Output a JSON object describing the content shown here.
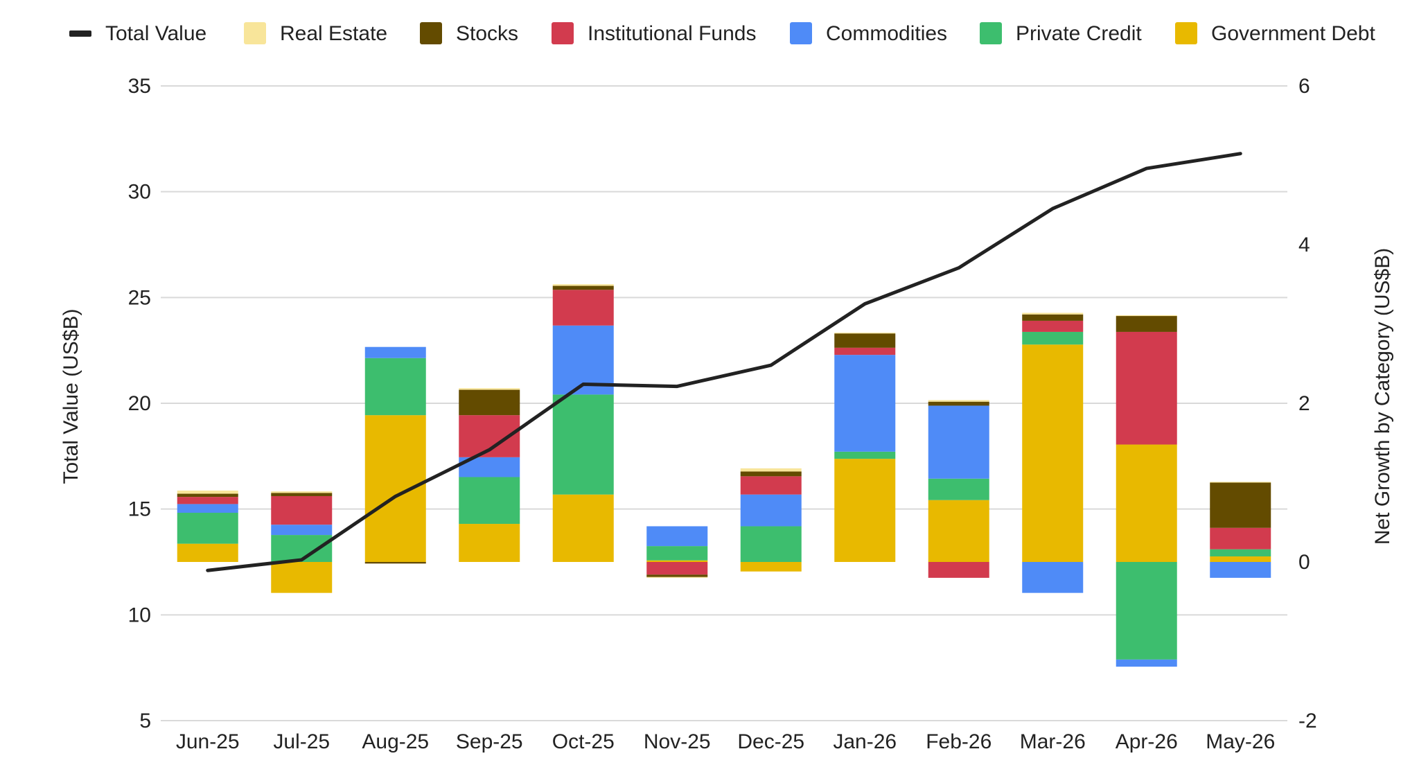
{
  "chart_data": {
    "type": "bar",
    "subtype": "stacked-bar-with-line",
    "categories": [
      "Jun-25",
      "Jul-25",
      "Aug-25",
      "Sep-25",
      "Oct-25",
      "Nov-25",
      "Dec-25",
      "Jan-26",
      "Feb-26",
      "Mar-26",
      "Apr-26",
      "May-26"
    ],
    "left_axis": {
      "label": "Total Value (US$B)",
      "ylim": [
        5,
        35
      ],
      "ticks": [
        5,
        10,
        15,
        20,
        25,
        30,
        35
      ]
    },
    "right_axis": {
      "label": "Net Growth by Category (US$B)",
      "ylim": [
        -2,
        6
      ],
      "ticks": [
        -2,
        0,
        2,
        4,
        6
      ]
    },
    "legend_position": "top",
    "grid": true,
    "line_series": {
      "name": "Total Value",
      "color": "#222222",
      "axis": "left",
      "values": [
        12.1,
        12.6,
        15.6,
        17.8,
        20.9,
        20.8,
        21.8,
        24.7,
        26.4,
        29.2,
        31.1,
        31.8
      ]
    },
    "bar_series": [
      {
        "name": "Government Debt",
        "color": "#E8B900",
        "axis": "right",
        "values": [
          0.23,
          -0.39,
          1.85,
          0.48,
          0.85,
          0.02,
          -0.12,
          1.3,
          0.78,
          2.74,
          1.48,
          0.07
        ]
      },
      {
        "name": "Private Credit",
        "color": "#3DBE6E",
        "axis": "right",
        "values": [
          0.39,
          0.34,
          0.72,
          0.59,
          1.26,
          0.18,
          0.45,
          0.09,
          0.27,
          0.16,
          -1.23,
          0.09
        ]
      },
      {
        "name": "Commodities",
        "color": "#4F8BF7",
        "axis": "right",
        "values": [
          0.11,
          0.13,
          0.14,
          0.25,
          0.87,
          0.25,
          0.4,
          1.22,
          0.92,
          -0.39,
          -0.09,
          -0.2
        ]
      },
      {
        "name": "Institutional Funds",
        "color": "#D23B4E",
        "axis": "right",
        "values": [
          0.09,
          0.36,
          0.0,
          0.53,
          0.45,
          -0.16,
          0.23,
          0.09,
          -0.2,
          0.14,
          1.42,
          0.27
        ]
      },
      {
        "name": "Stocks",
        "color": "#634B00",
        "axis": "right",
        "values": [
          0.04,
          0.04,
          -0.02,
          0.32,
          0.05,
          -0.03,
          0.06,
          0.18,
          0.05,
          0.08,
          0.2,
          0.57
        ]
      },
      {
        "name": "Real Estate",
        "color": "#F8E59A",
        "axis": "right",
        "values": [
          0.04,
          0.02,
          0.0,
          0.02,
          0.02,
          -0.01,
          0.04,
          0.01,
          0.02,
          0.02,
          0.01,
          0.01
        ]
      }
    ],
    "legend_order": [
      "Total Value",
      "Real Estate",
      "Stocks",
      "Institutional Funds",
      "Commodities",
      "Private Credit",
      "Government Debt"
    ]
  }
}
